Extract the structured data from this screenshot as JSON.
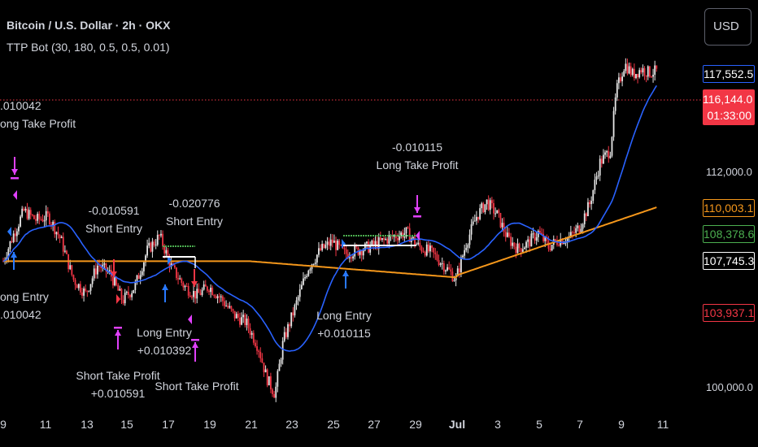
{
  "legend": {
    "title": "Bitcoin / U.S. Dollar · 2h · OKX",
    "indicator": "TTP Bot (30, 180, 0.5, 0.5, 0.01)"
  },
  "currency_button": "USD",
  "price_axis": {
    "labels": [
      "112,000.0",
      "100,000.0"
    ],
    "tags": [
      {
        "value": "117,552.5",
        "color": "#2962ff",
        "text_color": "#ffffff"
      },
      {
        "value": "110,003.1",
        "color": "#f5971b",
        "text_color": "#f5971b"
      },
      {
        "value": "108,378.6",
        "color": "#4caf50",
        "text_color": "#4caf50"
      },
      {
        "value": "107,745.3",
        "color": "#ffffff",
        "text_color": "#ffffff"
      },
      {
        "value": "103,937.1",
        "color": "#f23645",
        "text_color": "#f23645"
      }
    ],
    "last_price": {
      "value": "116,144.0",
      "countdown": "01:33:00"
    }
  },
  "date_axis": [
    "9",
    "11",
    "13",
    "15",
    "17",
    "19",
    "21",
    "23",
    "25",
    "27",
    "29",
    "Jul",
    "3",
    "5",
    "7",
    "9",
    "11"
  ],
  "annotations": [
    {
      "id": "a1",
      "lines": [
        ".010042",
        "ong Take Profit"
      ]
    },
    {
      "id": "a2",
      "lines": [
        "-0.010591",
        "Short Entry"
      ]
    },
    {
      "id": "a3",
      "lines": [
        "-0.020776",
        "Short Entry"
      ]
    },
    {
      "id": "a4",
      "lines": [
        "-0.010115",
        "Long Take Profit"
      ]
    },
    {
      "id": "a5",
      "lines": [
        "ong Entry",
        ".010042"
      ]
    },
    {
      "id": "a6",
      "lines": [
        "Long Entry",
        "+0.010392"
      ]
    },
    {
      "id": "a7",
      "lines": [
        "Short Take Profit",
        "+0.010591"
      ]
    },
    {
      "id": "a8",
      "lines": [
        "Short Take Profit"
      ]
    },
    {
      "id": "a9",
      "lines": [
        "Long Entry",
        "+0.010115"
      ]
    }
  ],
  "colors": {
    "background": "#000000",
    "up": "#e6e6e6",
    "down": "#f23645",
    "fast_ma": "#2962ff",
    "slow_ma": "#f5971b",
    "long_entry": "#2979ff",
    "short_entry": "#f23645",
    "take_profit": "#e040fb",
    "last_price_line": "#f23645"
  },
  "chart_data": {
    "type": "candlestick",
    "symbol": "Bitcoin / U.S. Dollar",
    "interval": "2h",
    "exchange": "OKX",
    "price_axis_ticks": [
      112000,
      100000
    ],
    "date_ticks": [
      "9",
      "11",
      "13",
      "15",
      "17",
      "19",
      "21",
      "23",
      "25",
      "27",
      "29",
      "Jul",
      "3",
      "5",
      "7",
      "9",
      "11"
    ],
    "last_price": 116144.0,
    "levels": [
      117552.5,
      110003.1,
      108378.6,
      107745.3,
      103937.1
    ],
    "approx_close_path": [
      [
        0,
        107000
      ],
      [
        0.5,
        108500
      ],
      [
        1,
        109800
      ],
      [
        1.6,
        109300
      ],
      [
        2.2,
        109500
      ],
      [
        2.8,
        108200
      ],
      [
        3.4,
        106000
      ],
      [
        4,
        105200
      ],
      [
        4.6,
        106800
      ],
      [
        5.2,
        106300
      ],
      [
        5.8,
        104800
      ],
      [
        6.4,
        105600
      ],
      [
        7,
        107600
      ],
      [
        7.6,
        108400
      ],
      [
        8.2,
        106600
      ],
      [
        8.8,
        105600
      ],
      [
        9.4,
        105100
      ],
      [
        10,
        105600
      ],
      [
        10.6,
        104900
      ],
      [
        11.2,
        104000
      ],
      [
        11.8,
        103600
      ],
      [
        12.4,
        102200
      ],
      [
        12.8,
        100500
      ],
      [
        13.2,
        99600
      ],
      [
        13.6,
        102500
      ],
      [
        14.2,
        104500
      ],
      [
        14.8,
        106600
      ],
      [
        15.4,
        107600
      ],
      [
        16,
        108100
      ],
      [
        16.6,
        107400
      ],
      [
        17.2,
        107600
      ],
      [
        17.8,
        107800
      ],
      [
        18.4,
        108100
      ],
      [
        19,
        108400
      ],
      [
        19.6,
        108600
      ],
      [
        20.2,
        107800
      ],
      [
        20.8,
        107500
      ],
      [
        21.4,
        106800
      ],
      [
        22,
        106000
      ],
      [
        22.5,
        108000
      ],
      [
        23,
        109500
      ],
      [
        23.5,
        110300
      ],
      [
        24,
        109600
      ],
      [
        24.5,
        108300
      ],
      [
        25,
        107700
      ],
      [
        25.5,
        108000
      ],
      [
        26,
        108600
      ],
      [
        26.5,
        107800
      ],
      [
        27,
        108200
      ],
      [
        27.5,
        108300
      ],
      [
        28,
        108900
      ],
      [
        28.5,
        110200
      ],
      [
        29,
        112500
      ],
      [
        29.5,
        113200
      ],
      [
        29.8,
        116500
      ],
      [
        30.2,
        118000
      ],
      [
        30.6,
        117400
      ],
      [
        31,
        117700
      ],
      [
        31.4,
        117500
      ],
      [
        31.8,
        117600
      ]
    ]
  }
}
